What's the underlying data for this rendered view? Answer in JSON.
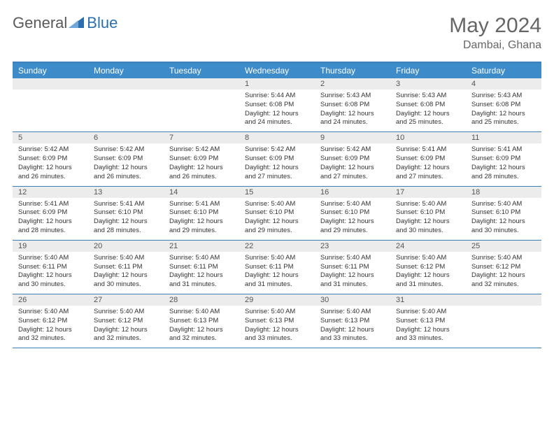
{
  "logo": {
    "text1": "General",
    "text2": "Blue",
    "color1": "#7a7a7a",
    "color2": "#2b6fb0"
  },
  "title": "May 2024",
  "location": "Dambai, Ghana",
  "weekdays": [
    "Sunday",
    "Monday",
    "Tuesday",
    "Wednesday",
    "Thursday",
    "Friday",
    "Saturday"
  ],
  "header_bg": "#3d8bc8",
  "border_color": "#3d7fba",
  "weeks": [
    {
      "nums": [
        "",
        "",
        "",
        "1",
        "2",
        "3",
        "4"
      ],
      "cells": [
        "",
        "",
        "",
        "Sunrise: 5:44 AM\nSunset: 6:08 PM\nDaylight: 12 hours and 24 minutes.",
        "Sunrise: 5:43 AM\nSunset: 6:08 PM\nDaylight: 12 hours and 24 minutes.",
        "Sunrise: 5:43 AM\nSunset: 6:08 PM\nDaylight: 12 hours and 25 minutes.",
        "Sunrise: 5:43 AM\nSunset: 6:08 PM\nDaylight: 12 hours and 25 minutes."
      ]
    },
    {
      "nums": [
        "5",
        "6",
        "7",
        "8",
        "9",
        "10",
        "11"
      ],
      "cells": [
        "Sunrise: 5:42 AM\nSunset: 6:09 PM\nDaylight: 12 hours and 26 minutes.",
        "Sunrise: 5:42 AM\nSunset: 6:09 PM\nDaylight: 12 hours and 26 minutes.",
        "Sunrise: 5:42 AM\nSunset: 6:09 PM\nDaylight: 12 hours and 26 minutes.",
        "Sunrise: 5:42 AM\nSunset: 6:09 PM\nDaylight: 12 hours and 27 minutes.",
        "Sunrise: 5:42 AM\nSunset: 6:09 PM\nDaylight: 12 hours and 27 minutes.",
        "Sunrise: 5:41 AM\nSunset: 6:09 PM\nDaylight: 12 hours and 27 minutes.",
        "Sunrise: 5:41 AM\nSunset: 6:09 PM\nDaylight: 12 hours and 28 minutes."
      ]
    },
    {
      "nums": [
        "12",
        "13",
        "14",
        "15",
        "16",
        "17",
        "18"
      ],
      "cells": [
        "Sunrise: 5:41 AM\nSunset: 6:09 PM\nDaylight: 12 hours and 28 minutes.",
        "Sunrise: 5:41 AM\nSunset: 6:10 PM\nDaylight: 12 hours and 28 minutes.",
        "Sunrise: 5:41 AM\nSunset: 6:10 PM\nDaylight: 12 hours and 29 minutes.",
        "Sunrise: 5:40 AM\nSunset: 6:10 PM\nDaylight: 12 hours and 29 minutes.",
        "Sunrise: 5:40 AM\nSunset: 6:10 PM\nDaylight: 12 hours and 29 minutes.",
        "Sunrise: 5:40 AM\nSunset: 6:10 PM\nDaylight: 12 hours and 30 minutes.",
        "Sunrise: 5:40 AM\nSunset: 6:10 PM\nDaylight: 12 hours and 30 minutes."
      ]
    },
    {
      "nums": [
        "19",
        "20",
        "21",
        "22",
        "23",
        "24",
        "25"
      ],
      "cells": [
        "Sunrise: 5:40 AM\nSunset: 6:11 PM\nDaylight: 12 hours and 30 minutes.",
        "Sunrise: 5:40 AM\nSunset: 6:11 PM\nDaylight: 12 hours and 30 minutes.",
        "Sunrise: 5:40 AM\nSunset: 6:11 PM\nDaylight: 12 hours and 31 minutes.",
        "Sunrise: 5:40 AM\nSunset: 6:11 PM\nDaylight: 12 hours and 31 minutes.",
        "Sunrise: 5:40 AM\nSunset: 6:11 PM\nDaylight: 12 hours and 31 minutes.",
        "Sunrise: 5:40 AM\nSunset: 6:12 PM\nDaylight: 12 hours and 31 minutes.",
        "Sunrise: 5:40 AM\nSunset: 6:12 PM\nDaylight: 12 hours and 32 minutes."
      ]
    },
    {
      "nums": [
        "26",
        "27",
        "28",
        "29",
        "30",
        "31",
        ""
      ],
      "cells": [
        "Sunrise: 5:40 AM\nSunset: 6:12 PM\nDaylight: 12 hours and 32 minutes.",
        "Sunrise: 5:40 AM\nSunset: 6:12 PM\nDaylight: 12 hours and 32 minutes.",
        "Sunrise: 5:40 AM\nSunset: 6:13 PM\nDaylight: 12 hours and 32 minutes.",
        "Sunrise: 5:40 AM\nSunset: 6:13 PM\nDaylight: 12 hours and 33 minutes.",
        "Sunrise: 5:40 AM\nSunset: 6:13 PM\nDaylight: 12 hours and 33 minutes.",
        "Sunrise: 5:40 AM\nSunset: 6:13 PM\nDaylight: 12 hours and 33 minutes.",
        ""
      ]
    }
  ]
}
